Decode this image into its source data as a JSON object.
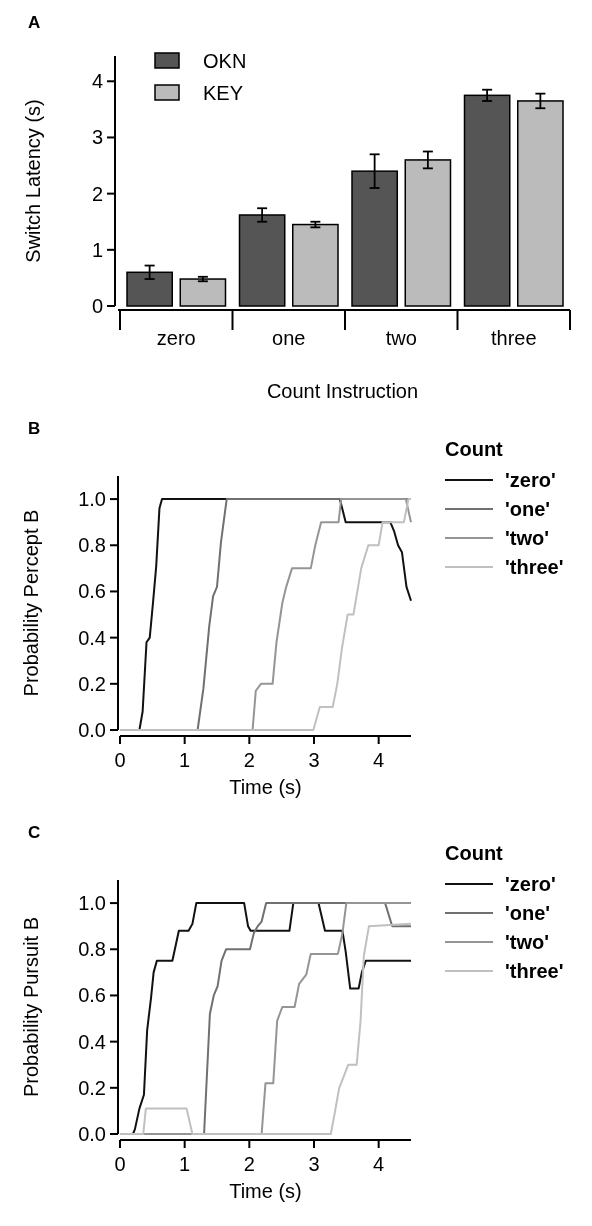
{
  "chart_data": [
    {
      "type": "bar",
      "title": "A",
      "xlabel": "Count Instruction",
      "ylabel": "Switch Latency (s)",
      "categories": [
        "zero",
        "one",
        "two",
        "three"
      ],
      "series": [
        {
          "name": "OKN",
          "color": "#555555",
          "values": [
            0.6,
            1.62,
            2.4,
            3.75
          ],
          "errors": [
            0.12,
            0.12,
            0.3,
            0.1
          ]
        },
        {
          "name": "KEY",
          "color": "#bbbbbb",
          "values": [
            0.48,
            1.45,
            2.6,
            3.65
          ],
          "errors": [
            0.04,
            0.05,
            0.15,
            0.13
          ]
        }
      ],
      "ylim": [
        0,
        4.45
      ],
      "yticks": [
        0,
        1,
        2,
        3,
        4
      ],
      "legend": "top left"
    },
    {
      "type": "line",
      "title": "B",
      "xlabel": "Time (s)",
      "ylabel": "Probability Percept B",
      "legend_title": "Count",
      "legend": "right",
      "xlim": [
        0,
        4.5
      ],
      "xticks": [
        0,
        1,
        2,
        3,
        4
      ],
      "ylim": [
        0,
        1.1
      ],
      "yticks": [
        {
          "value": 0,
          "label": "0.0"
        },
        {
          "value": 0.2,
          "label": "0.2"
        },
        {
          "value": 0.4,
          "label": "0.4"
        },
        {
          "value": 0.6,
          "label": "0.6"
        },
        {
          "value": 0.8,
          "label": "0.8"
        },
        {
          "value": 1,
          "label": "1.0"
        }
      ],
      "series": [
        {
          "name": "'zero'",
          "color": "#111111",
          "x": [
            0,
            0.3,
            0.35,
            0.41,
            0.46,
            0.51,
            0.56,
            0.61,
            0.65,
            3.4,
            3.49,
            4.18,
            4.24,
            4.3,
            4.36,
            4.43,
            4.5
          ],
          "values": [
            0,
            0,
            0.08,
            0.38,
            0.4,
            0.55,
            0.71,
            0.96,
            1,
            1,
            0.9,
            0.9,
            0.86,
            0.8,
            0.77,
            0.62,
            0.56
          ]
        },
        {
          "name": "'one'",
          "color": "#707070",
          "x": [
            0,
            1.2,
            1.29,
            1.38,
            1.44,
            1.5,
            1.56,
            1.65,
            4.5
          ],
          "values": [
            0,
            0,
            0.18,
            0.45,
            0.58,
            0.62,
            0.81,
            1,
            1
          ]
        },
        {
          "name": "'two'",
          "color": "#959595",
          "x": [
            0,
            2.05,
            2.1,
            2.18,
            2.36,
            2.42,
            2.51,
            2.57,
            2.66,
            2.95,
            3.02,
            3.11,
            3.38,
            3.42,
            4.42,
            4.5
          ],
          "values": [
            0,
            0,
            0.17,
            0.2,
            0.2,
            0.38,
            0.55,
            0.62,
            0.7,
            0.7,
            0.8,
            0.9,
            0.9,
            1,
            1,
            0.9
          ]
        },
        {
          "name": "'three'",
          "color": "#c0c0c0",
          "x": [
            0,
            2.99,
            3.09,
            3.29,
            3.36,
            3.43,
            3.52,
            3.61,
            3.73,
            3.84,
            4.0,
            4.06,
            4.39,
            4.46,
            4.5
          ],
          "values": [
            0,
            0,
            0.1,
            0.1,
            0.2,
            0.35,
            0.5,
            0.5,
            0.7,
            0.8,
            0.8,
            0.9,
            0.9,
            1,
            1
          ]
        }
      ]
    },
    {
      "type": "line",
      "title": "C",
      "xlabel": "Time (s)",
      "ylabel": "Probability Pursuit B",
      "legend_title": "Count",
      "legend": "right",
      "xlim": [
        0,
        4.5
      ],
      "xticks": [
        0,
        1,
        2,
        3,
        4
      ],
      "ylim": [
        0,
        1.1
      ],
      "yticks": [
        {
          "value": 0,
          "label": "0.0"
        },
        {
          "value": 0.2,
          "label": "0.2"
        },
        {
          "value": 0.4,
          "label": "0.4"
        },
        {
          "value": 0.6,
          "label": "0.6"
        },
        {
          "value": 0.8,
          "label": "0.8"
        },
        {
          "value": 1,
          "label": "1.0"
        }
      ],
      "series": [
        {
          "name": "'zero'",
          "color": "#111111",
          "x": [
            0,
            0.2,
            0.23,
            0.3,
            0.37,
            0.42,
            0.48,
            0.52,
            0.57,
            0.81,
            0.91,
            1.06,
            1.12,
            1.18,
            1.92,
            1.98,
            2.02,
            2.62,
            2.68,
            3.07,
            3.17,
            3.44,
            3.49,
            3.56,
            3.69,
            3.74,
            3.8,
            4.5
          ],
          "values": [
            0,
            0,
            0.02,
            0.11,
            0.17,
            0.45,
            0.59,
            0.7,
            0.75,
            0.75,
            0.88,
            0.88,
            0.91,
            1,
            1,
            0.9,
            0.88,
            0.88,
            1,
            1,
            0.88,
            0.88,
            0.79,
            0.63,
            0.63,
            0.7,
            0.75,
            0.75
          ]
        },
        {
          "name": "'one'",
          "color": "#707070",
          "x": [
            0,
            1.3,
            1.39,
            1.45,
            1.51,
            1.57,
            1.64,
            2.01,
            2.07,
            2.13,
            2.19,
            2.26,
            4.1,
            4.21,
            4.5
          ],
          "values": [
            0,
            0,
            0.52,
            0.6,
            0.64,
            0.75,
            0.8,
            0.8,
            0.87,
            0.9,
            0.92,
            1,
            1,
            0.9,
            0.9
          ]
        },
        {
          "name": "'two'",
          "color": "#959595",
          "x": [
            0,
            2.19,
            2.25,
            2.37,
            2.43,
            2.51,
            2.7,
            2.77,
            2.88,
            2.95,
            3.37,
            3.44,
            3.5,
            4.5
          ],
          "values": [
            0,
            0,
            0.22,
            0.22,
            0.49,
            0.55,
            0.55,
            0.65,
            0.69,
            0.78,
            0.78,
            0.87,
            1,
            1
          ]
        },
        {
          "name": "'three'",
          "color": "#c0c0c0",
          "x": [
            0,
            0.36,
            0.4,
            1.03,
            1.12,
            3.26,
            3.32,
            3.39,
            3.46,
            3.53,
            3.66,
            3.72,
            3.77,
            3.85,
            4.5
          ],
          "values": [
            0,
            0,
            0.11,
            0.11,
            0,
            0,
            0.09,
            0.2,
            0.25,
            0.3,
            0.3,
            0.49,
            0.77,
            0.9,
            0.91
          ]
        }
      ]
    }
  ]
}
